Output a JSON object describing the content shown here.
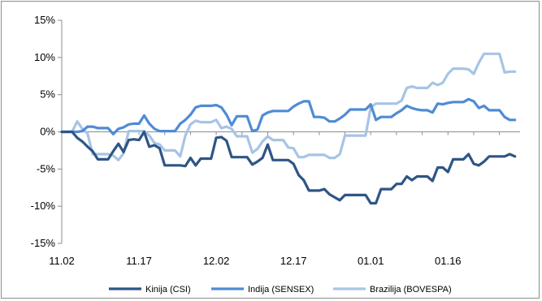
{
  "chart_data": {
    "type": "line",
    "title": "",
    "xlabel": "",
    "ylabel": "",
    "ylim": [
      -15,
      15
    ],
    "y_ticks": [
      15,
      10,
      5,
      0,
      -5,
      -10,
      -15
    ],
    "y_tick_labels": [
      "15%",
      "10%",
      "5%",
      "0%",
      "-5%",
      "-10%",
      "-15%"
    ],
    "x_tick_labels": [
      "11.02",
      "11.17",
      "12.02",
      "12.17",
      "01.01",
      "01.16"
    ],
    "x_tick_positions": [
      0,
      15,
      30,
      45,
      60,
      75
    ],
    "x_range": [
      0,
      89
    ],
    "grid": false,
    "legend_position": "bottom",
    "series": [
      {
        "name": "Kinija (CSI)",
        "color": "#2f5586",
        "values": [
          0,
          0,
          0,
          -0.8,
          -1.3,
          -2.0,
          -2.6,
          -3.7,
          -3.7,
          -3.7,
          -2.6,
          -1.6,
          -2.7,
          -1.1,
          -1.0,
          -1.1,
          0.0,
          -2.0,
          -1.8,
          -2.2,
          -4.5,
          -4.5,
          -4.5,
          -4.5,
          -4.6,
          -3.5,
          -4.5,
          -3.6,
          -3.6,
          -3.6,
          -0.8,
          -0.7,
          -1.2,
          -3.4,
          -3.4,
          -3.4,
          -3.4,
          -4.4,
          -4.0,
          -3.5,
          -1.7,
          -3.8,
          -3.8,
          -3.8,
          -3.8,
          -4.3,
          -5.8,
          -6.5,
          -7.9,
          -7.9,
          -7.9,
          -7.7,
          -8.4,
          -8.8,
          -9.2,
          -8.5,
          -8.5,
          -8.5,
          -8.5,
          -8.5,
          -9.6,
          -9.6,
          -7.7,
          -7.7,
          -7.7,
          -7.0,
          -7.0,
          -6.0,
          -6.5,
          -6.0,
          -6.0,
          -6.0,
          -6.6,
          -4.8,
          -4.8,
          -5.4,
          -3.7,
          -3.7,
          -3.7,
          -3.0,
          -4.3,
          -4.5,
          -4.0,
          -3.3,
          -3.3,
          -3.3,
          -3.3,
          -3.0,
          -3.3
        ]
      },
      {
        "name": "Indija (SENSEX)",
        "color": "#4f8bd6",
        "values": [
          0,
          0,
          0,
          0,
          0.1,
          0.7,
          0.7,
          0.5,
          0.5,
          0.5,
          -0.3,
          0.4,
          0.6,
          1.0,
          1.1,
          1.1,
          2.2,
          1.1,
          0.4,
          0.1,
          0.1,
          0.1,
          0.1,
          1.1,
          1.6,
          2.3,
          3.3,
          3.5,
          3.5,
          3.5,
          3.6,
          3.3,
          2.3,
          0.9,
          2.1,
          2.1,
          2.1,
          0.1,
          0.3,
          2.2,
          2.6,
          2.8,
          2.8,
          2.8,
          2.8,
          3.4,
          3.8,
          4.1,
          4.1,
          2.0,
          2.0,
          1.9,
          1.4,
          1.4,
          1.8,
          2.3,
          3.0,
          3.0,
          3.0,
          3.0,
          3.7,
          1.6,
          2.0,
          2.0,
          2.0,
          2.5,
          2.9,
          3.5,
          3.2,
          3.0,
          2.9,
          2.9,
          2.6,
          3.8,
          3.7,
          3.9,
          4.0,
          4.0,
          4.0,
          4.4,
          4.1,
          3.2,
          3.5,
          2.9,
          2.9,
          2.9,
          2.0,
          1.6,
          1.6
        ]
      },
      {
        "name": "Brazilija (BOVESPA)",
        "color": "#a7c4e5",
        "values": [
          0,
          0,
          0,
          1.4,
          0.4,
          -0.2,
          -3.0,
          -3.0,
          -3.0,
          -3.0,
          -3.2,
          -3.8,
          -2.9,
          0.1,
          0.1,
          0.1,
          0.1,
          -0.5,
          -1.5,
          -1.7,
          -2.5,
          -2.5,
          -2.5,
          -3.3,
          -0.5,
          1.0,
          1.5,
          1.3,
          1.3,
          1.3,
          1.6,
          0.5,
          0.7,
          0.4,
          -0.6,
          -0.6,
          -0.6,
          -2.8,
          -2.3,
          -1.3,
          -0.6,
          -1.1,
          -1.1,
          -1.1,
          -2.1,
          -2.2,
          -3.4,
          -3.4,
          -3.1,
          -3.1,
          -3.1,
          -3.1,
          -3.5,
          -3.5,
          -3.0,
          -0.5,
          -0.5,
          -0.5,
          -0.5,
          -0.5,
          3.3,
          3.8,
          3.8,
          3.8,
          3.8,
          3.8,
          4.2,
          5.9,
          6.1,
          5.9,
          5.9,
          5.9,
          6.6,
          6.3,
          6.6,
          7.8,
          8.5,
          8.5,
          8.5,
          8.4,
          7.8,
          9.3,
          10.5,
          10.5,
          10.5,
          10.5,
          8.0,
          8.1,
          8.1
        ]
      }
    ]
  }
}
